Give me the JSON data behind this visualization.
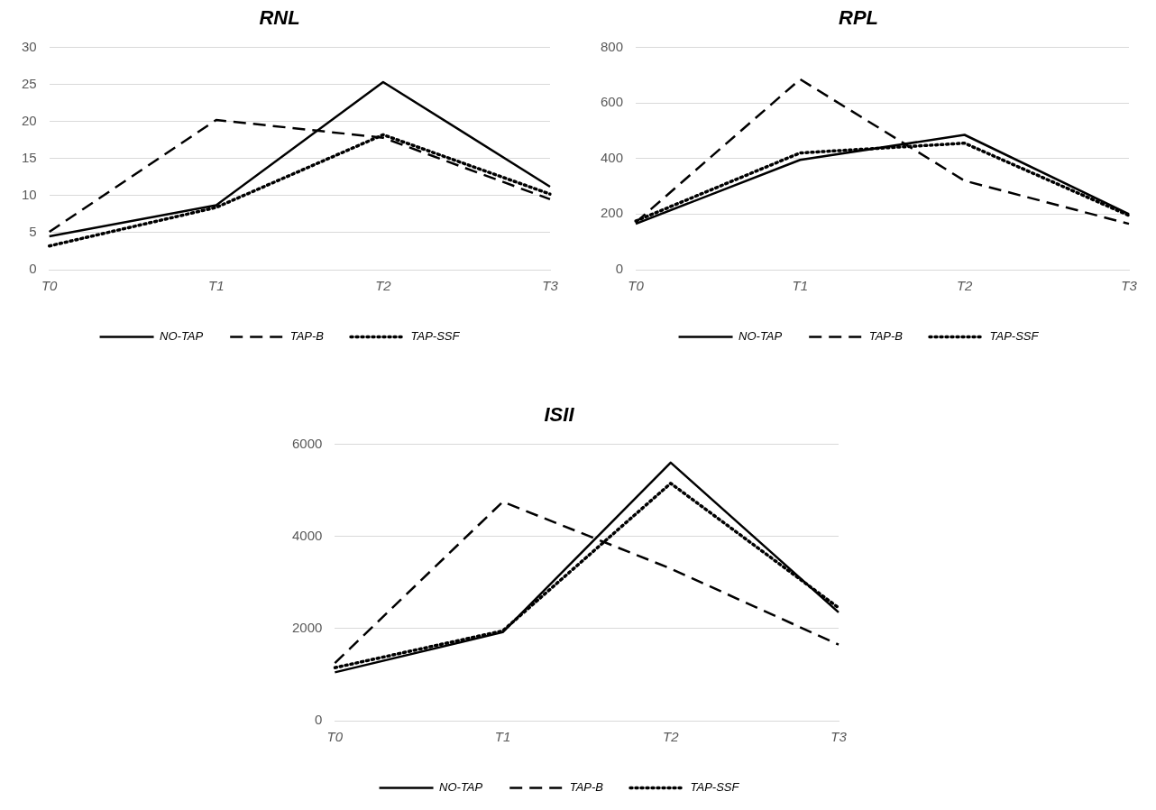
{
  "chart_data": [
    {
      "type": "line",
      "title": "RNL",
      "categories": [
        "T0",
        "T1",
        "T2",
        "T3"
      ],
      "ylim": [
        0,
        30
      ],
      "yticks": [
        0,
        5,
        10,
        15,
        20,
        25,
        30
      ],
      "grid": "y",
      "legend": "bottom",
      "marker": "none",
      "series": [
        {
          "name": "NO-TAP",
          "color": "#000000",
          "line_style": "solid",
          "values": [
            4.5,
            8.7,
            25.3,
            11.2
          ]
        },
        {
          "name": "TAP-B",
          "color": "#000000",
          "line_style": "dashed",
          "values": [
            5.1,
            20.2,
            17.8,
            9.5
          ]
        },
        {
          "name": "TAP-SSF",
          "color": "#000000",
          "line_style": "dotted",
          "values": [
            3.2,
            8.4,
            18.2,
            10.2
          ]
        }
      ]
    },
    {
      "type": "line",
      "title": "RPL",
      "categories": [
        "T0",
        "T1",
        "T2",
        "T3"
      ],
      "ylim": [
        0,
        800
      ],
      "yticks": [
        0,
        200,
        400,
        600,
        800
      ],
      "grid": "y",
      "legend": "bottom",
      "marker": "none",
      "series": [
        {
          "name": "NO-TAP",
          "color": "#000000",
          "line_style": "solid",
          "values": [
            165,
            395,
            485,
            200
          ]
        },
        {
          "name": "TAP-B",
          "color": "#000000",
          "line_style": "dashed",
          "values": [
            170,
            685,
            320,
            165
          ]
        },
        {
          "name": "TAP-SSF",
          "color": "#000000",
          "line_style": "dotted",
          "values": [
            175,
            420,
            455,
            195
          ]
        }
      ]
    },
    {
      "type": "line",
      "title": "ISII",
      "categories": [
        "T0",
        "T1",
        "T2",
        "T3"
      ],
      "ylim": [
        0,
        6000
      ],
      "yticks": [
        0,
        2000,
        4000,
        6000
      ],
      "grid": "y",
      "legend": "bottom",
      "marker": "none",
      "series": [
        {
          "name": "NO-TAP",
          "color": "#000000",
          "line_style": "solid",
          "values": [
            1050,
            1920,
            5600,
            2350
          ]
        },
        {
          "name": "TAP-B",
          "color": "#000000",
          "line_style": "dashed",
          "values": [
            1250,
            4750,
            3300,
            1650
          ]
        },
        {
          "name": "TAP-SSF",
          "color": "#000000",
          "line_style": "dotted",
          "values": [
            1150,
            1950,
            5150,
            2450
          ]
        }
      ]
    }
  ]
}
